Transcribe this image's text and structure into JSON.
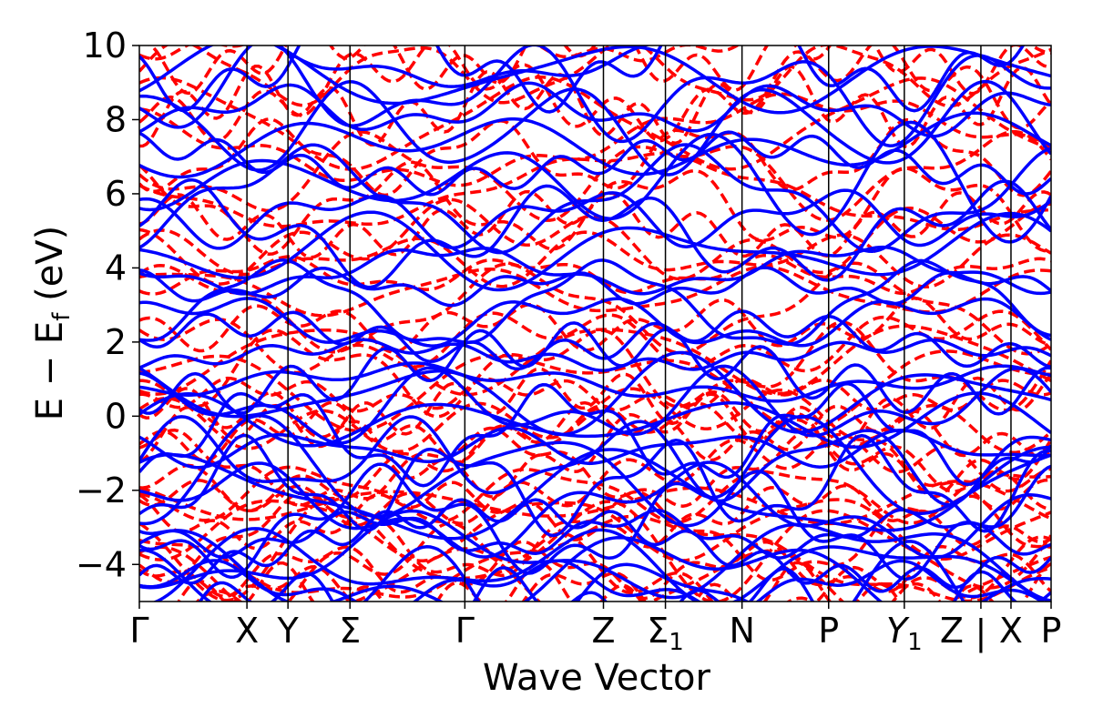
{
  "chart_data": {
    "type": "line",
    "title": "",
    "xlabel": "Wave Vector",
    "ylabel": "E − E",
    "ylabel_subscript": "f",
    "ylabel_unit": " (eV)",
    "ylim": [
      -5,
      10
    ],
    "yticks": [
      -4,
      -2,
      0,
      2,
      4,
      6,
      8,
      10
    ],
    "ytick_labels": [
      "−4",
      "−2",
      "0",
      "2",
      "4",
      "6",
      "8",
      "10"
    ],
    "xlim": [
      0,
      1
    ],
    "kpoints": [
      {
        "label": "Γ",
        "x": 0.0
      },
      {
        "label": "X",
        "x": 0.118
      },
      {
        "label": "Y",
        "x": 0.163
      },
      {
        "label": "Σ",
        "x": 0.231
      },
      {
        "label": "Γ",
        "x": 0.357
      },
      {
        "label": "Z",
        "x": 0.509
      },
      {
        "label": "Σ",
        "sub": "1",
        "x": 0.577
      },
      {
        "label": "N",
        "x": 0.661
      },
      {
        "label": "P",
        "x": 0.756
      },
      {
        "label": "Y",
        "sub": "1",
        "italic": true,
        "x": 0.839
      },
      {
        "label": "Z",
        "x": 0.923
      },
      {
        "label": "X",
        "x": 0.956
      },
      {
        "label": "P",
        "x": 1.0
      }
    ],
    "path_break": {
      "label": "|",
      "x": 0.923
    },
    "series": [
      {
        "style": "dashed",
        "color": "#ff0000",
        "bands": 42
      },
      {
        "style": "solid",
        "color": "#0000ff",
        "bands": 40
      }
    ]
  }
}
